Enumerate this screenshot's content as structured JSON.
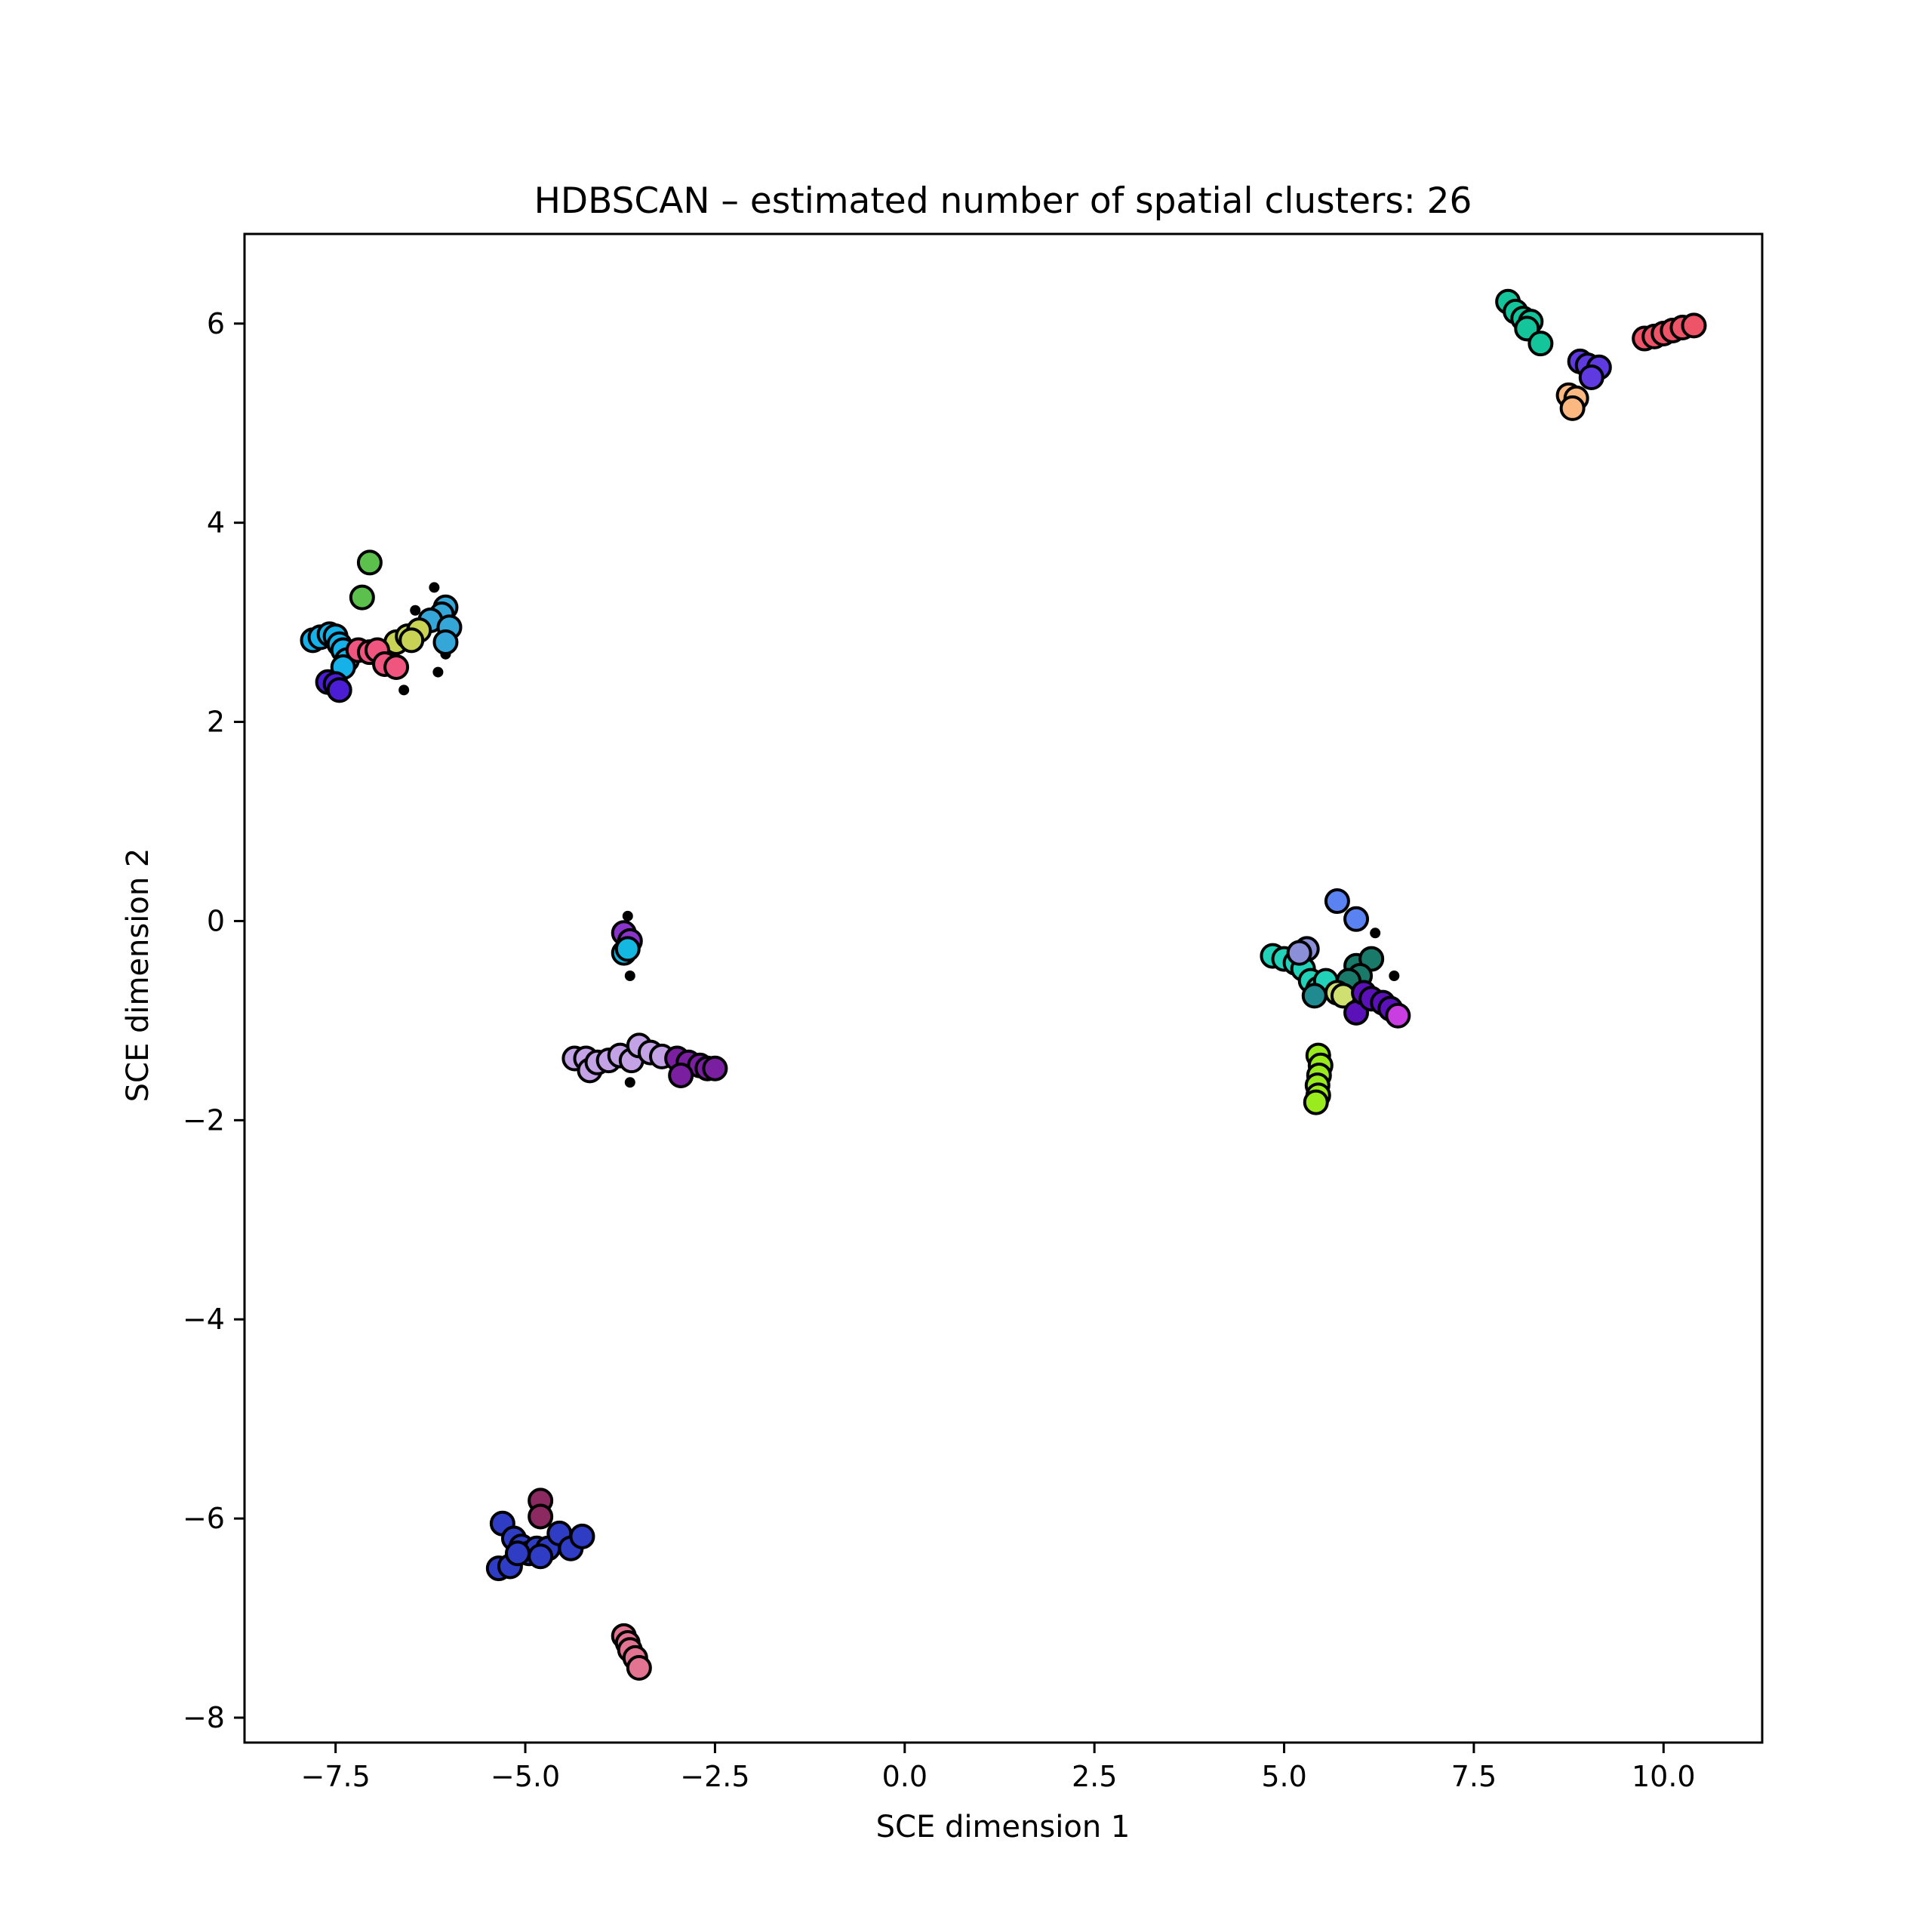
{
  "chart_data": {
    "type": "scatter",
    "title": "HDBSCAN – estimated number of spatial clusters: 26",
    "xlabel": "SCE dimension 1",
    "ylabel": "SCE dimension 2",
    "xlim": [
      -8.7,
      11.3
    ],
    "ylim": [
      -8.25,
      6.9
    ],
    "xticks": [
      -7.5,
      -5.0,
      -2.5,
      0.0,
      2.5,
      5.0,
      7.5,
      10.0
    ],
    "xtick_labels": [
      "−7.5",
      "−5.0",
      "−2.5",
      "0.0",
      "2.5",
      "5.0",
      "7.5",
      "10.0"
    ],
    "yticks": [
      -8,
      -6,
      -4,
      -2,
      0,
      2,
      4,
      6
    ],
    "ytick_labels": [
      "−8",
      "−6",
      "−4",
      "−2",
      "0",
      "2",
      "4",
      "6"
    ],
    "grid": false,
    "legend": "none",
    "noise_color": "#000000",
    "noise_points": [
      [
        -6.2,
        3.35
      ],
      [
        -6.45,
        3.12
      ],
      [
        -6.6,
        2.32
      ],
      [
        -6.15,
        2.5
      ],
      [
        -6.05,
        2.68
      ],
      [
        -6.3,
        3.05
      ],
      [
        -3.65,
        0.05
      ],
      [
        -3.62,
        -0.55
      ],
      [
        -3.62,
        -1.62
      ],
      [
        6.2,
        -0.12
      ],
      [
        6.45,
        -0.55
      ],
      [
        6.3,
        -0.85
      ]
    ],
    "clusters": [
      {
        "color": "#14c49a",
        "points": [
          [
            7.95,
            6.22
          ],
          [
            8.05,
            6.12
          ],
          [
            8.15,
            6.05
          ],
          [
            8.25,
            6.02
          ],
          [
            8.2,
            5.95
          ],
          [
            8.38,
            5.8
          ]
        ]
      },
      {
        "color": "#ee5468",
        "points": [
          [
            9.75,
            5.85
          ],
          [
            9.88,
            5.87
          ],
          [
            10.0,
            5.9
          ],
          [
            10.12,
            5.93
          ],
          [
            10.25,
            5.96
          ],
          [
            10.4,
            5.98
          ]
        ]
      },
      {
        "color": "#5e3ae0",
        "points": [
          [
            8.9,
            5.62
          ],
          [
            9.0,
            5.58
          ],
          [
            9.15,
            5.56
          ],
          [
            9.05,
            5.46
          ]
        ]
      },
      {
        "color": "#fbb981",
        "points": [
          [
            8.75,
            5.28
          ],
          [
            8.85,
            5.25
          ],
          [
            8.8,
            5.15
          ]
        ]
      },
      {
        "color": "#5bc04c",
        "points": [
          [
            -7.05,
            3.6
          ],
          [
            -7.15,
            3.25
          ]
        ]
      },
      {
        "color": "#35a6d8",
        "points": [
          [
            -6.05,
            3.15
          ],
          [
            -6.1,
            3.08
          ],
          [
            -6.25,
            3.02
          ],
          [
            -6.0,
            2.95
          ],
          [
            -6.05,
            2.8
          ]
        ]
      },
      {
        "color": "#c8d356",
        "points": [
          [
            -6.7,
            2.8
          ],
          [
            -6.55,
            2.86
          ],
          [
            -6.4,
            2.92
          ],
          [
            -6.5,
            2.82
          ]
        ]
      },
      {
        "color": "#16b1e8",
        "points": [
          [
            -7.8,
            2.82
          ],
          [
            -7.7,
            2.85
          ],
          [
            -7.58,
            2.88
          ],
          [
            -7.5,
            2.86
          ],
          [
            -7.45,
            2.78
          ],
          [
            -7.4,
            2.72
          ],
          [
            -7.35,
            2.62
          ],
          [
            -7.4,
            2.55
          ]
        ]
      },
      {
        "color": "#f05580",
        "points": [
          [
            -7.2,
            2.72
          ],
          [
            -7.05,
            2.7
          ],
          [
            -6.95,
            2.72
          ],
          [
            -6.85,
            2.58
          ],
          [
            -6.7,
            2.55
          ]
        ]
      },
      {
        "color": "#4b1ed6",
        "points": [
          [
            -7.6,
            2.4
          ],
          [
            -7.5,
            2.38
          ],
          [
            -7.45,
            2.32
          ]
        ]
      },
      {
        "color": "#8a35c9",
        "points": [
          [
            -3.7,
            -0.12
          ],
          [
            -3.62,
            -0.2
          ]
        ]
      },
      {
        "color": "#14b7e0",
        "points": [
          [
            -3.7,
            -0.32
          ],
          [
            -3.65,
            -0.28
          ]
        ]
      },
      {
        "color": "#c3a2e6",
        "points": [
          [
            -4.35,
            -1.38
          ],
          [
            -4.2,
            -1.38
          ],
          [
            -4.15,
            -1.5
          ],
          [
            -4.05,
            -1.42
          ],
          [
            -3.9,
            -1.4
          ],
          [
            -3.75,
            -1.35
          ],
          [
            -3.6,
            -1.4
          ],
          [
            -3.5,
            -1.25
          ],
          [
            -3.35,
            -1.32
          ],
          [
            -3.2,
            -1.36
          ]
        ]
      },
      {
        "color": "#7a1fa0",
        "points": [
          [
            -3.0,
            -1.38
          ],
          [
            -2.85,
            -1.42
          ],
          [
            -2.7,
            -1.45
          ],
          [
            -2.6,
            -1.48
          ],
          [
            -2.5,
            -1.48
          ],
          [
            -2.95,
            -1.55
          ]
        ]
      },
      {
        "color": "#2f3cc4",
        "points": [
          [
            -5.3,
            -6.05
          ],
          [
            -5.15,
            -6.2
          ],
          [
            -5.05,
            -6.28
          ],
          [
            -4.95,
            -6.35
          ],
          [
            -4.85,
            -6.3
          ],
          [
            -4.7,
            -6.3
          ],
          [
            -4.55,
            -6.15
          ],
          [
            -4.4,
            -6.3
          ],
          [
            -4.25,
            -6.18
          ],
          [
            -5.35,
            -6.5
          ],
          [
            -5.2,
            -6.48
          ],
          [
            -5.1,
            -6.35
          ],
          [
            -4.8,
            -6.38
          ]
        ]
      },
      {
        "color": "#8b2a60",
        "points": [
          [
            -4.8,
            -5.82
          ],
          [
            -4.8,
            -5.98
          ]
        ]
      },
      {
        "color": "#e27492",
        "points": [
          [
            -3.7,
            -7.18
          ],
          [
            -3.65,
            -7.25
          ],
          [
            -3.62,
            -7.32
          ],
          [
            -3.55,
            -7.4
          ],
          [
            -3.5,
            -7.5
          ]
        ]
      },
      {
        "color": "#5a82f0",
        "points": [
          [
            5.7,
            0.2
          ],
          [
            5.95,
            0.02
          ]
        ]
      },
      {
        "color": "#22d2b8",
        "points": [
          [
            4.85,
            -0.35
          ],
          [
            5.0,
            -0.38
          ],
          [
            5.15,
            -0.42
          ],
          [
            5.25,
            -0.48
          ],
          [
            5.35,
            -0.6
          ],
          [
            5.45,
            -0.68
          ],
          [
            5.55,
            -0.6
          ]
        ]
      },
      {
        "color": "#8a8fd8",
        "points": [
          [
            5.3,
            -0.28
          ],
          [
            5.2,
            -0.32
          ]
        ]
      },
      {
        "color": "#1a7a6a",
        "points": [
          [
            5.95,
            -0.45
          ],
          [
            6.15,
            -0.38
          ],
          [
            6.0,
            -0.55
          ],
          [
            5.85,
            -0.6
          ]
        ]
      },
      {
        "color": "#cfe070",
        "points": [
          [
            5.7,
            -0.72
          ],
          [
            5.78,
            -0.75
          ]
        ]
      },
      {
        "color": "#5a12b8",
        "points": [
          [
            5.95,
            -0.92
          ],
          [
            6.05,
            -0.72
          ],
          [
            6.15,
            -0.78
          ],
          [
            6.3,
            -0.82
          ],
          [
            6.4,
            -0.88
          ]
        ]
      },
      {
        "color": "#c83ee0",
        "points": [
          [
            6.5,
            -0.95
          ]
        ]
      },
      {
        "color": "#9aeb1e",
        "points": [
          [
            5.45,
            -1.35
          ],
          [
            5.48,
            -1.45
          ],
          [
            5.46,
            -1.55
          ],
          [
            5.44,
            -1.65
          ],
          [
            5.45,
            -1.75
          ],
          [
            5.42,
            -1.82
          ]
        ]
      },
      {
        "color": "#1f8a90",
        "points": [
          [
            5.4,
            -0.75
          ]
        ]
      }
    ]
  }
}
